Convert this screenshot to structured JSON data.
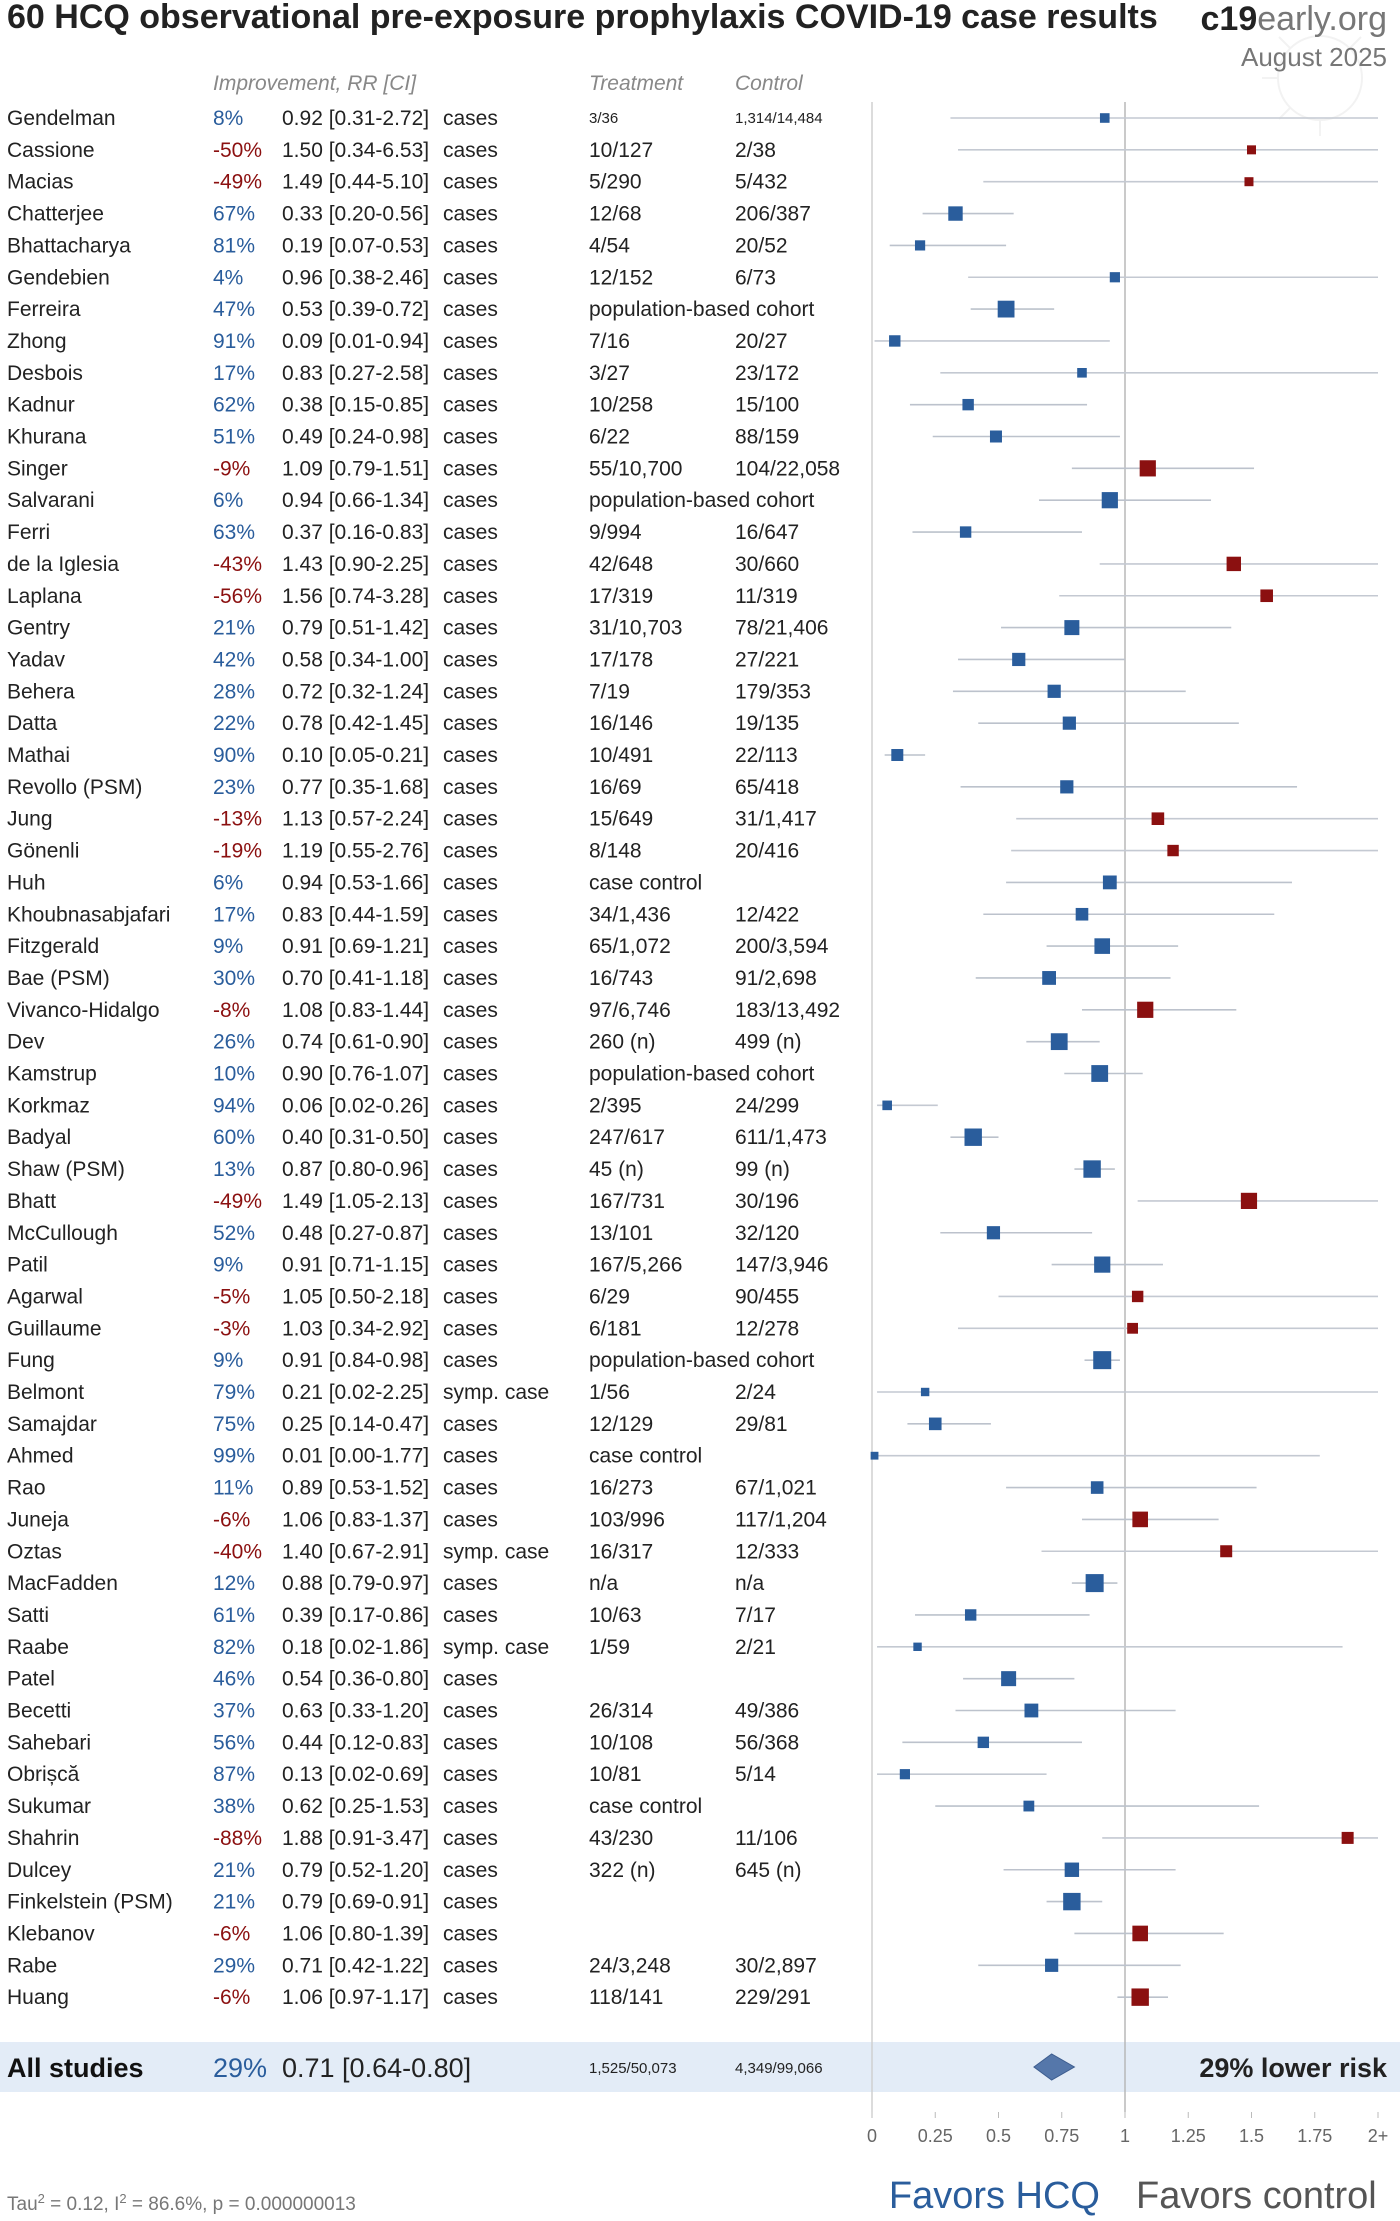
{
  "header": {
    "title": "60 HCQ observational pre-exposure prophylaxis COVID-19 case results",
    "brand_bold": "c19",
    "brand_rest": "early.org",
    "date": "August 2025"
  },
  "columns": {
    "improvement": "Improvement, RR [CI]",
    "treatment": "Treatment",
    "control": "Control"
  },
  "colors": {
    "favorable": "#2a5d9c",
    "unfavorable": "#8b1010",
    "ci_line": "#bcc2cc",
    "summary_band": "#e3ecf7",
    "diamond": "#5577aa"
  },
  "chart_data": {
    "type": "forest",
    "x_scale_max_label": "2+",
    "xlim": [
      0,
      2
    ],
    "ticks": [
      "0",
      "0.25",
      "0.5",
      "0.75",
      "1",
      "1.25",
      "1.5",
      "1.75",
      "2+"
    ],
    "reference_line": 1,
    "studies": [
      {
        "name": "Gendelman",
        "improvement": "8%",
        "rr_text": "0.92 [0.31-2.72]",
        "type": "cases",
        "treatment": "3/36",
        "control": "1,314/14,484",
        "small": true,
        "rr": 0.92,
        "lo": 0.31,
        "hi": 2.72,
        "weight": 0.3
      },
      {
        "name": "Cassione",
        "improvement": "-50%",
        "rr_text": "1.50 [0.34-6.53]",
        "type": "cases",
        "treatment": "10/127",
        "control": "2/38",
        "rr": 1.5,
        "lo": 0.34,
        "hi": 6.53,
        "weight": 0.25
      },
      {
        "name": "Macias",
        "improvement": "-49%",
        "rr_text": "1.49 [0.44-5.10]",
        "type": "cases",
        "treatment": "5/290",
        "control": "5/432",
        "rr": 1.49,
        "lo": 0.44,
        "hi": 5.1,
        "weight": 0.25
      },
      {
        "name": "Chatterjee",
        "improvement": "67%",
        "rr_text": "0.33 [0.20-0.56]",
        "type": "cases",
        "treatment": "12/68",
        "control": "206/387",
        "rr": 0.33,
        "lo": 0.2,
        "hi": 0.56,
        "weight": 0.7
      },
      {
        "name": "Bhattacharya",
        "improvement": "81%",
        "rr_text": "0.19 [0.07-0.53]",
        "type": "cases",
        "treatment": "4/54",
        "control": "20/52",
        "rr": 0.19,
        "lo": 0.07,
        "hi": 0.53,
        "weight": 0.35
      },
      {
        "name": "Gendebien",
        "improvement": "4%",
        "rr_text": "0.96 [0.38-2.46]",
        "type": "cases",
        "treatment": "12/152",
        "control": "6/73",
        "rr": 0.96,
        "lo": 0.38,
        "hi": 2.46,
        "weight": 0.35
      },
      {
        "name": "Ferreira",
        "improvement": "47%",
        "rr_text": "0.53 [0.39-0.72]",
        "type": "cases",
        "treatment": "population-based cohort",
        "control": "",
        "rr": 0.53,
        "lo": 0.39,
        "hi": 0.72,
        "weight": 0.9
      },
      {
        "name": "Zhong",
        "improvement": "91%",
        "rr_text": "0.09 [0.01-0.94]",
        "type": "cases",
        "treatment": "7/16",
        "control": "20/27",
        "rr": 0.09,
        "lo": 0.01,
        "hi": 0.94,
        "weight": 0.45
      },
      {
        "name": "Desbois",
        "improvement": "17%",
        "rr_text": "0.83 [0.27-2.58]",
        "type": "cases",
        "treatment": "3/27",
        "control": "23/172",
        "rr": 0.83,
        "lo": 0.27,
        "hi": 2.58,
        "weight": 0.3
      },
      {
        "name": "Kadnur",
        "improvement": "62%",
        "rr_text": "0.38 [0.15-0.85]",
        "type": "cases",
        "treatment": "10/258",
        "control": "15/100",
        "rr": 0.38,
        "lo": 0.15,
        "hi": 0.85,
        "weight": 0.45
      },
      {
        "name": "Khurana",
        "improvement": "51%",
        "rr_text": "0.49 [0.24-0.98]",
        "type": "cases",
        "treatment": "6/22",
        "control": "88/159",
        "rr": 0.49,
        "lo": 0.24,
        "hi": 0.98,
        "weight": 0.5
      },
      {
        "name": "Singer",
        "improvement": "-9%",
        "rr_text": "1.09 [0.79-1.51]",
        "type": "cases",
        "treatment": "55/10,700",
        "control": "104/22,058",
        "rr": 1.09,
        "lo": 0.79,
        "hi": 1.51,
        "weight": 0.85
      },
      {
        "name": "Salvarani",
        "improvement": "6%",
        "rr_text": "0.94 [0.66-1.34]",
        "type": "cases",
        "treatment": "population-based cohort",
        "control": "",
        "rr": 0.94,
        "lo": 0.66,
        "hi": 1.34,
        "weight": 0.85
      },
      {
        "name": "Ferri",
        "improvement": "63%",
        "rr_text": "0.37 [0.16-0.83]",
        "type": "cases",
        "treatment": "9/994",
        "control": "16/647",
        "rr": 0.37,
        "lo": 0.16,
        "hi": 0.83,
        "weight": 0.45
      },
      {
        "name": "de la Iglesia",
        "improvement": "-43%",
        "rr_text": "1.43 [0.90-2.25]",
        "type": "cases",
        "treatment": "42/648",
        "control": "30/660",
        "rr": 1.43,
        "lo": 0.9,
        "hi": 2.25,
        "weight": 0.7
      },
      {
        "name": "Laplana",
        "improvement": "-56%",
        "rr_text": "1.56 [0.74-3.28]",
        "type": "cases",
        "treatment": "17/319",
        "control": "11/319",
        "rr": 1.56,
        "lo": 0.74,
        "hi": 3.28,
        "weight": 0.55
      },
      {
        "name": "Gentry",
        "improvement": "21%",
        "rr_text": "0.79 [0.51-1.42]",
        "type": "cases",
        "treatment": "31/10,703",
        "control": "78/21,406",
        "rr": 0.79,
        "lo": 0.51,
        "hi": 1.42,
        "weight": 0.75
      },
      {
        "name": "Yadav",
        "improvement": "42%",
        "rr_text": "0.58 [0.34-1.00]",
        "type": "cases",
        "treatment": "17/178",
        "control": "27/221",
        "rr": 0.58,
        "lo": 0.34,
        "hi": 1.0,
        "weight": 0.6
      },
      {
        "name": "Behera",
        "improvement": "28%",
        "rr_text": "0.72 [0.32-1.24]",
        "type": "cases",
        "treatment": "7/19",
        "control": "179/353",
        "rr": 0.72,
        "lo": 0.32,
        "hi": 1.24,
        "weight": 0.6
      },
      {
        "name": "Datta",
        "improvement": "22%",
        "rr_text": "0.78 [0.42-1.45]",
        "type": "cases",
        "treatment": "16/146",
        "control": "19/135",
        "rr": 0.78,
        "lo": 0.42,
        "hi": 1.45,
        "weight": 0.6
      },
      {
        "name": "Mathai",
        "improvement": "90%",
        "rr_text": "0.10 [0.05-0.21]",
        "type": "cases",
        "treatment": "10/491",
        "control": "22/113",
        "rr": 0.1,
        "lo": 0.05,
        "hi": 0.21,
        "weight": 0.5
      },
      {
        "name": "Revollo (PSM)",
        "improvement": "23%",
        "rr_text": "0.77 [0.35-1.68]",
        "type": "cases",
        "treatment": "16/69",
        "control": "65/418",
        "rr": 0.77,
        "lo": 0.35,
        "hi": 1.68,
        "weight": 0.6
      },
      {
        "name": "Jung",
        "improvement": "-13%",
        "rr_text": "1.13 [0.57-2.24]",
        "type": "cases",
        "treatment": "15/649",
        "control": "31/1,417",
        "rr": 1.13,
        "lo": 0.57,
        "hi": 2.24,
        "weight": 0.55
      },
      {
        "name": "Gönenli",
        "improvement": "-19%",
        "rr_text": "1.19 [0.55-2.76]",
        "type": "cases",
        "treatment": "8/148",
        "control": "20/416",
        "rr": 1.19,
        "lo": 0.55,
        "hi": 2.76,
        "weight": 0.45
      },
      {
        "name": "Huh",
        "improvement": "6%",
        "rr_text": "0.94 [0.53-1.66]",
        "type": "cases",
        "treatment": "case control",
        "control": "",
        "rr": 0.94,
        "lo": 0.53,
        "hi": 1.66,
        "weight": 0.65
      },
      {
        "name": "Khoubnasabjafari",
        "improvement": "17%",
        "rr_text": "0.83 [0.44-1.59]",
        "type": "cases",
        "treatment": "34/1,436",
        "control": "12/422",
        "rr": 0.83,
        "lo": 0.44,
        "hi": 1.59,
        "weight": 0.55
      },
      {
        "name": "Fitzgerald",
        "improvement": "9%",
        "rr_text": "0.91 [0.69-1.21]",
        "type": "cases",
        "treatment": "65/1,072",
        "control": "200/3,594",
        "rr": 0.91,
        "lo": 0.69,
        "hi": 1.21,
        "weight": 0.8
      },
      {
        "name": "Bae (PSM)",
        "improvement": "30%",
        "rr_text": "0.70 [0.41-1.18]",
        "type": "cases",
        "treatment": "16/743",
        "control": "91/2,698",
        "rr": 0.7,
        "lo": 0.41,
        "hi": 1.18,
        "weight": 0.65
      },
      {
        "name": "Vivanco-Hidalgo",
        "improvement": "-8%",
        "rr_text": "1.08 [0.83-1.44]",
        "type": "cases",
        "treatment": "97/6,746",
        "control": "183/13,492",
        "rr": 1.08,
        "lo": 0.83,
        "hi": 1.44,
        "weight": 0.85
      },
      {
        "name": "Dev",
        "improvement": "26%",
        "rr_text": "0.74 [0.61-0.90]",
        "type": "cases",
        "treatment": "260 (n)",
        "control": "499 (n)",
        "rr": 0.74,
        "lo": 0.61,
        "hi": 0.9,
        "weight": 0.9
      },
      {
        "name": "Kamstrup",
        "improvement": "10%",
        "rr_text": "0.90 [0.76-1.07]",
        "type": "cases",
        "treatment": "population-based cohort",
        "control": "",
        "rr": 0.9,
        "lo": 0.76,
        "hi": 1.07,
        "weight": 0.9
      },
      {
        "name": "Korkmaz",
        "improvement": "94%",
        "rr_text": "0.06 [0.02-0.26]",
        "type": "cases",
        "treatment": "2/395",
        "control": "24/299",
        "rr": 0.06,
        "lo": 0.02,
        "hi": 0.26,
        "weight": 0.3
      },
      {
        "name": "Badyal",
        "improvement": "60%",
        "rr_text": "0.40 [0.31-0.50]",
        "type": "cases",
        "treatment": "247/617",
        "control": "611/1,473",
        "rr": 0.4,
        "lo": 0.31,
        "hi": 0.5,
        "weight": 0.95
      },
      {
        "name": "Shaw (PSM)",
        "improvement": "13%",
        "rr_text": "0.87 [0.80-0.96]",
        "type": "cases",
        "treatment": "45 (n)",
        "control": "99 (n)",
        "rr": 0.87,
        "lo": 0.8,
        "hi": 0.96,
        "weight": 0.95
      },
      {
        "name": "Bhatt",
        "improvement": "-49%",
        "rr_text": "1.49 [1.05-2.13]",
        "type": "cases",
        "treatment": "167/731",
        "control": "30/196",
        "rr": 1.49,
        "lo": 1.05,
        "hi": 2.13,
        "weight": 0.85
      },
      {
        "name": "McCullough",
        "improvement": "52%",
        "rr_text": "0.48 [0.27-0.87]",
        "type": "cases",
        "treatment": "13/101",
        "control": "32/120",
        "rr": 0.48,
        "lo": 0.27,
        "hi": 0.87,
        "weight": 0.6
      },
      {
        "name": "Patil",
        "improvement": "9%",
        "rr_text": "0.91 [0.71-1.15]",
        "type": "cases",
        "treatment": "167/5,266",
        "control": "147/3,946",
        "rr": 0.91,
        "lo": 0.71,
        "hi": 1.15,
        "weight": 0.85
      },
      {
        "name": "Agarwal",
        "improvement": "-5%",
        "rr_text": "1.05 [0.50-2.18]",
        "type": "cases",
        "treatment": "6/29",
        "control": "90/455",
        "rr": 1.05,
        "lo": 0.5,
        "hi": 2.18,
        "weight": 0.45
      },
      {
        "name": "Guillaume",
        "improvement": "-3%",
        "rr_text": "1.03 [0.34-2.92]",
        "type": "cases",
        "treatment": "6/181",
        "control": "12/278",
        "rr": 1.03,
        "lo": 0.34,
        "hi": 2.92,
        "weight": 0.4
      },
      {
        "name": "Fung",
        "improvement": "9%",
        "rr_text": "0.91 [0.84-0.98]",
        "type": "cases",
        "treatment": "population-based cohort",
        "control": "",
        "rr": 0.91,
        "lo": 0.84,
        "hi": 0.98,
        "weight": 1.0
      },
      {
        "name": "Belmont",
        "improvement": "79%",
        "rr_text": "0.21 [0.02-2.25]",
        "type": "symp. case",
        "treatment": "1/56",
        "control": "2/24",
        "rr": 0.21,
        "lo": 0.02,
        "hi": 2.25,
        "weight": 0.2
      },
      {
        "name": "Samajdar",
        "improvement": "75%",
        "rr_text": "0.25 [0.14-0.47]",
        "type": "cases",
        "treatment": "12/129",
        "control": "29/81",
        "rr": 0.25,
        "lo": 0.14,
        "hi": 0.47,
        "weight": 0.55
      },
      {
        "name": "Ahmed",
        "improvement": "99%",
        "rr_text": "0.01 [0.00-1.77]",
        "type": "cases",
        "treatment": "case control",
        "control": "",
        "rr": 0.01,
        "lo": 0.0,
        "hi": 1.77,
        "weight": 0.15
      },
      {
        "name": "Rao",
        "improvement": "11%",
        "rr_text": "0.89 [0.53-1.52]",
        "type": "cases",
        "treatment": "16/273",
        "control": "67/1,021",
        "rr": 0.89,
        "lo": 0.53,
        "hi": 1.52,
        "weight": 0.55
      },
      {
        "name": "Juneja",
        "improvement": "-6%",
        "rr_text": "1.06 [0.83-1.37]",
        "type": "cases",
        "treatment": "103/996",
        "control": "117/1,204",
        "rr": 1.06,
        "lo": 0.83,
        "hi": 1.37,
        "weight": 0.8
      },
      {
        "name": "Oztas",
        "improvement": "-40%",
        "rr_text": "1.40 [0.67-2.91]",
        "type": "symp. case",
        "treatment": "16/317",
        "control": "12/333",
        "rr": 1.4,
        "lo": 0.67,
        "hi": 2.91,
        "weight": 0.5
      },
      {
        "name": "MacFadden",
        "improvement": "12%",
        "rr_text": "0.88 [0.79-0.97]",
        "type": "cases",
        "treatment": "n/a",
        "control": "n/a",
        "rr": 0.88,
        "lo": 0.79,
        "hi": 0.97,
        "weight": 1.0
      },
      {
        "name": "Satti",
        "improvement": "61%",
        "rr_text": "0.39 [0.17-0.86]",
        "type": "cases",
        "treatment": "10/63",
        "control": "7/17",
        "rr": 0.39,
        "lo": 0.17,
        "hi": 0.86,
        "weight": 0.45
      },
      {
        "name": "Raabe",
        "improvement": "82%",
        "rr_text": "0.18 [0.02-1.86]",
        "type": "symp. case",
        "treatment": "1/59",
        "control": "2/21",
        "rr": 0.18,
        "lo": 0.02,
        "hi": 1.86,
        "weight": 0.2
      },
      {
        "name": "Patel",
        "improvement": "46%",
        "rr_text": "0.54 [0.36-0.80]",
        "type": "cases",
        "treatment": "",
        "control": "",
        "rr": 0.54,
        "lo": 0.36,
        "hi": 0.8,
        "weight": 0.75
      },
      {
        "name": "Becetti",
        "improvement": "37%",
        "rr_text": "0.63 [0.33-1.20]",
        "type": "cases",
        "treatment": "26/314",
        "control": "49/386",
        "rr": 0.63,
        "lo": 0.33,
        "hi": 1.2,
        "weight": 0.65
      },
      {
        "name": "Sahebari",
        "improvement": "56%",
        "rr_text": "0.44 [0.12-0.83]",
        "type": "cases",
        "treatment": "10/108",
        "control": "56/368",
        "rr": 0.44,
        "lo": 0.12,
        "hi": 0.83,
        "weight": 0.45
      },
      {
        "name": "Obrișcă",
        "improvement": "87%",
        "rr_text": "0.13 [0.02-0.69]",
        "type": "cases",
        "treatment": "10/81",
        "control": "5/14",
        "rr": 0.13,
        "lo": 0.02,
        "hi": 0.69,
        "weight": 0.35
      },
      {
        "name": "Sukumar",
        "improvement": "38%",
        "rr_text": "0.62 [0.25-1.53]",
        "type": "cases",
        "treatment": "case control",
        "control": "",
        "rr": 0.62,
        "lo": 0.25,
        "hi": 1.53,
        "weight": 0.4
      },
      {
        "name": "Shahrin",
        "improvement": "-88%",
        "rr_text": "1.88 [0.91-3.47]",
        "type": "cases",
        "treatment": "43/230",
        "control": "11/106",
        "rr": 1.88,
        "lo": 0.91,
        "hi": 3.47,
        "weight": 0.5
      },
      {
        "name": "Dulcey",
        "improvement": "21%",
        "rr_text": "0.79 [0.52-1.20]",
        "type": "cases",
        "treatment": "322 (n)",
        "control": "645 (n)",
        "rr": 0.79,
        "lo": 0.52,
        "hi": 1.2,
        "weight": 0.7
      },
      {
        "name": "Finkelstein (PSM)",
        "improvement": "21%",
        "rr_text": "0.79 [0.69-0.91]",
        "type": "cases",
        "treatment": "",
        "control": "",
        "rr": 0.79,
        "lo": 0.69,
        "hi": 0.91,
        "weight": 0.95
      },
      {
        "name": "Klebanov",
        "improvement": "-6%",
        "rr_text": "1.06 [0.80-1.39]",
        "type": "cases",
        "treatment": "",
        "control": "",
        "rr": 1.06,
        "lo": 0.8,
        "hi": 1.39,
        "weight": 0.8
      },
      {
        "name": "Rabe",
        "improvement": "29%",
        "rr_text": "0.71 [0.42-1.22]",
        "type": "cases",
        "treatment": "24/3,248",
        "control": "30/2,897",
        "rr": 0.71,
        "lo": 0.42,
        "hi": 1.22,
        "weight": 0.6
      },
      {
        "name": "Huang",
        "improvement": "-6%",
        "rr_text": "1.06 [0.97-1.17]",
        "type": "cases",
        "treatment": "118/141",
        "control": "229/291",
        "rr": 1.06,
        "lo": 0.97,
        "hi": 1.17,
        "weight": 0.95
      }
    ],
    "summary": {
      "label": "All studies",
      "improvement": "29%",
      "rr_text": "0.71 [0.64-0.80]",
      "treatment": "1,525/50,073",
      "control": "4,349/99,066",
      "rr": 0.71,
      "lo": 0.64,
      "hi": 0.8,
      "result": "29% lower risk"
    }
  },
  "footer": {
    "favors_left": "Favors HCQ",
    "favors_right": "Favors control",
    "tau": "0.12",
    "i2": "86.6%",
    "p": "0.000000013"
  }
}
